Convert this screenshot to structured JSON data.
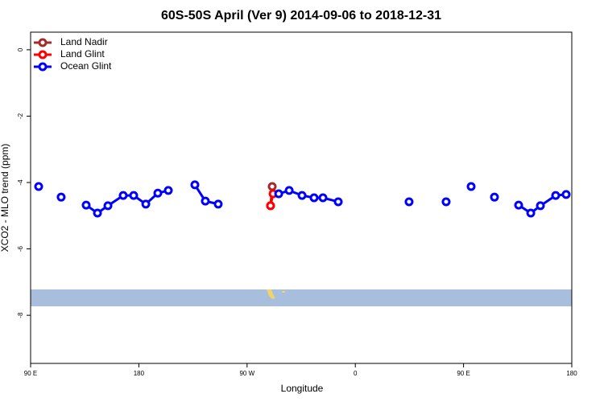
{
  "chart_data": {
    "type": "line",
    "title": "60S-50S April (Ver 9)   2014-09-06 to 2018-12-31",
    "x_label": "Longitude",
    "y_label": "XCO2 - MLO trend (ppm)",
    "xlim": [
      90,
      540
    ],
    "xticks": [
      {
        "value": 90,
        "label": "90 E"
      },
      {
        "value": 180,
        "label": "180"
      },
      {
        "value": 270,
        "label": "90 W"
      },
      {
        "value": 360,
        "label": "0"
      },
      {
        "value": 450,
        "label": "90 E"
      },
      {
        "value": 540,
        "label": "180"
      }
    ],
    "ylim": [
      -9.45,
      0.53
    ],
    "yticks": [
      0,
      -2,
      -4,
      -6,
      -8
    ],
    "legend": "top-left",
    "series": [
      {
        "name": "Land Nadir",
        "color": "#a52a2a",
        "x": [
          290.9,
          289.5
        ],
        "values": [
          -4.12,
          -4.7
        ]
      },
      {
        "name": "Land Glint",
        "color": "#ff0000",
        "x": [
          291.6,
          289.5
        ],
        "values": [
          -4.34,
          -4.7
        ]
      },
      {
        "name": "Ocean Glint",
        "color": "#0000ff",
        "x": [
          96.7,
          null,
          115.4,
          null,
          136.2,
          145.6,
          154.3,
          167.0,
          175.7,
          185.8,
          195.8,
          204.5,
          null,
          226.6,
          235.3,
          246.0,
          null,
          296.3,
          305.0,
          315.7,
          325.7,
          333.1,
          345.8,
          null,
          404.7,
          null,
          435.5,
          null,
          456.3,
          null,
          475.7,
          null,
          495.8,
          505.9,
          513.9,
          526.6,
          535.3
        ],
        "values": [
          -4.12,
          null,
          -4.44,
          null,
          -4.68,
          -4.92,
          -4.7,
          -4.39,
          -4.39,
          -4.65,
          -4.32,
          -4.24,
          null,
          -4.07,
          -4.56,
          -4.65,
          null,
          -4.34,
          -4.24,
          -4.39,
          -4.46,
          -4.46,
          -4.58,
          null,
          -4.58,
          null,
          -4.58,
          null,
          -4.12,
          null,
          -4.44,
          null,
          -4.68,
          -4.92,
          -4.7,
          -4.39,
          -4.36
        ]
      }
    ]
  }
}
